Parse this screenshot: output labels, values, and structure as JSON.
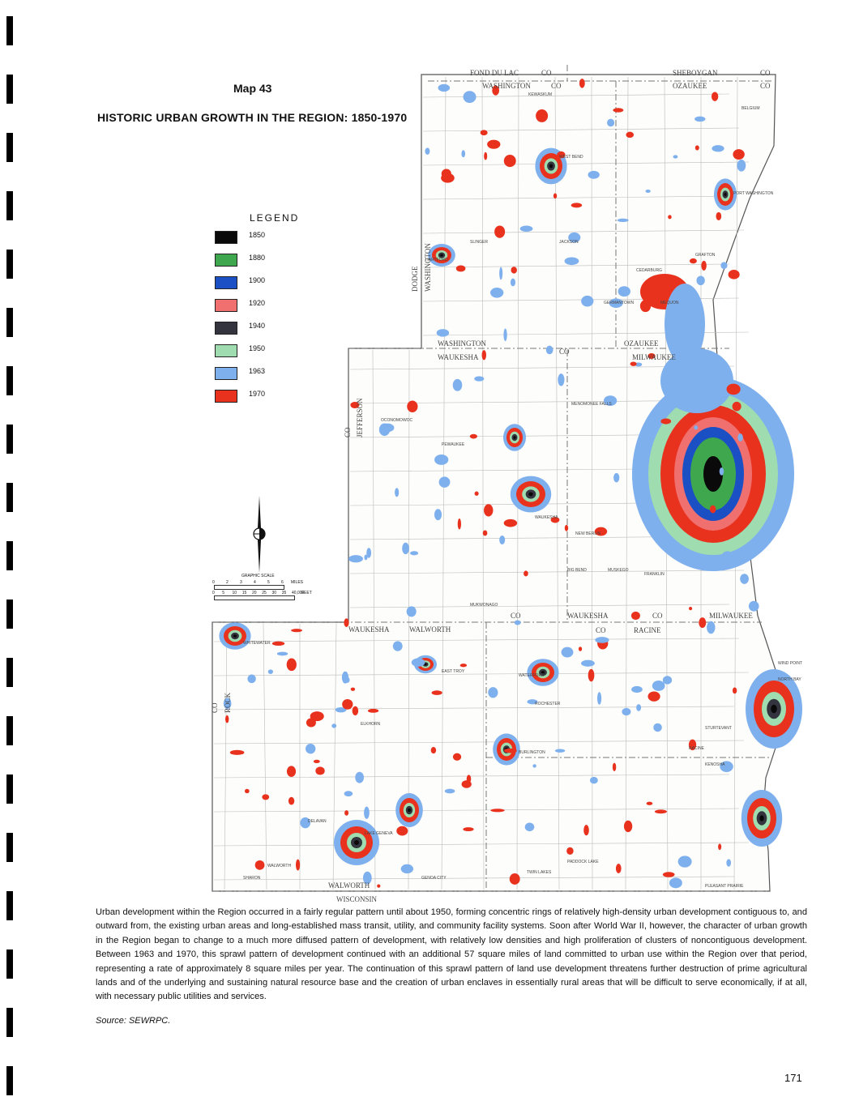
{
  "header": {
    "map_number": "Map 43",
    "title": "HISTORIC URBAN GROWTH IN THE REGION: 1850-1970"
  },
  "legend": {
    "title": "LEGEND",
    "items": [
      {
        "label": "1850",
        "color": "#0a0a0a"
      },
      {
        "label": "1880",
        "color": "#3fa84f"
      },
      {
        "label": "1900",
        "color": "#1b4fc4"
      },
      {
        "label": "1920",
        "color": "#f07070"
      },
      {
        "label": "1940",
        "color": "#33343d"
      },
      {
        "label": "1950",
        "color": "#9fdcb0"
      },
      {
        "label": "1963",
        "color": "#7fb0ee"
      },
      {
        "label": "1970",
        "color": "#e8321e"
      }
    ]
  },
  "scale": {
    "title": "GRAPHIC SCALE",
    "miles_ticks": [
      "0",
      "2",
      "3",
      "4",
      "5",
      "6"
    ],
    "miles_unit": "MILES",
    "feet_ticks": [
      "0",
      "5",
      "10",
      "15",
      "20",
      "25",
      "30",
      "35",
      "40,000"
    ],
    "feet_unit": "FEET"
  },
  "map": {
    "county_labels": [
      "FOND DU LAC",
      "CO",
      "WASHINGTON",
      "CO",
      "SHEBOYGAN",
      "CO",
      "OZAUKEE",
      "CO",
      "DODGE",
      "WASHINGTON",
      "WASHINGTON",
      "WAUKESHA",
      "CO",
      "OZAUKEE",
      "MILWAUKEE",
      "CO",
      "JEFFERSON",
      "WAUKESHA",
      "WALWORTH",
      "CO",
      "WAUKESHA",
      "CO",
      "RACINE",
      "CO",
      "MILWAUKEE",
      "CO",
      "ROCK",
      "WALWORTH",
      "WISCONSIN",
      "ILLINOIS"
    ],
    "place_labels": [
      "KEWASKUM",
      "BELGIUM",
      "WEST BEND",
      "PORT WASHINGTON",
      "SLINGER",
      "JACKSON",
      "HARTFORD",
      "CEDARBURG",
      "GRAFTON",
      "MEQUON",
      "GERMANTOWN",
      "MENOMONEE FALLS",
      "OCONOMOWOC",
      "PEWAUKEE",
      "WAUKESHA",
      "NEW BERLIN",
      "FRANKLIN",
      "MUKWONAGO",
      "BIG BEND",
      "MUSKEGO",
      "WHITEWATER",
      "EAST TROY",
      "WATERFORD",
      "ROCHESTER",
      "BURLINGTON",
      "ELKHORN",
      "DELAVAN",
      "LAKE GENEVA",
      "WALWORTH",
      "SHARON",
      "GENOA CITY",
      "TWIN LAKES",
      "PADDOCK LAKE",
      "RACINE",
      "KENOSHA",
      "STURTEVANT",
      "WIND POINT",
      "NORTH BAY",
      "PLEASANT PRAIRIE"
    ]
  },
  "caption": "Urban development within the Region occurred in a fairly regular pattern until about 1950, forming concentric rings of relatively high-density urban development contiguous to, and outward from, the existing urban areas and long-established mass transit, utility, and community facility systems. Soon after World War II, however, the character of urban growth in the Region began to change to a much more diffused pattern of development, with relatively low densities and high proliferation of clusters of noncontiguous development. Between 1963 and 1970, this sprawl pattern of development continued with an additional 57 square miles of land committed to urban use within the Region over that period, representing a rate of approximately 8 square miles per year. The continuation of this sprawl pattern of land use development threatens further destruction of prime agricultural lands and of the underlying and sustaining natural resource base and the creation of urban enclaves in essentially rural areas that will be difficult to serve economically, if at all, with necessary public utilities and services.",
  "source": "Source: SEWRPC.",
  "page_number": "171"
}
